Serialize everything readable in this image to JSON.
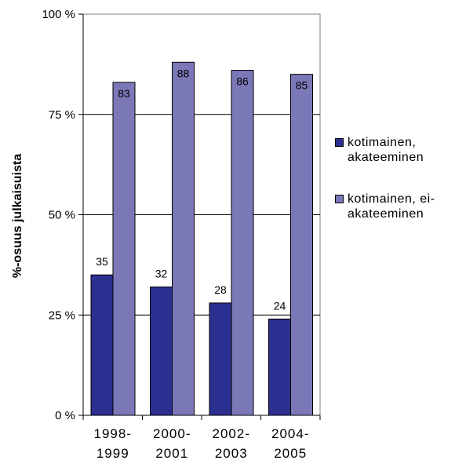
{
  "chart_data": {
    "type": "bar",
    "title": "",
    "xlabel": "",
    "ylabel": "%-osuus julkaisuista",
    "ylim": [
      0,
      100
    ],
    "yticks": [
      "0 %",
      "25 %",
      "50 %",
      "75 %",
      "100 %"
    ],
    "ytick_values": [
      0,
      25,
      50,
      75,
      100
    ],
    "categories": [
      [
        "1998-",
        "1999"
      ],
      [
        "2000-",
        "2001"
      ],
      [
        "2002-",
        "2003"
      ],
      [
        "2004-",
        "2005"
      ]
    ],
    "series": [
      {
        "name": "kotimainen, akateeminen",
        "legend_lines": [
          "kotimainen,",
          "akateeminen"
        ],
        "color": "#2b3090",
        "values": [
          35,
          32,
          28,
          24
        ],
        "labels": [
          "35",
          "32",
          "28",
          "24"
        ]
      },
      {
        "name": "kotimainen, ei-akateeminen",
        "legend_lines": [
          "kotimainen, ei-",
          "akateeminen"
        ],
        "color": "#7b78b8",
        "values": [
          83,
          88,
          86,
          85
        ],
        "labels": [
          "83",
          "88",
          "86",
          "85"
        ]
      }
    ],
    "grid": true,
    "legend": "right"
  }
}
